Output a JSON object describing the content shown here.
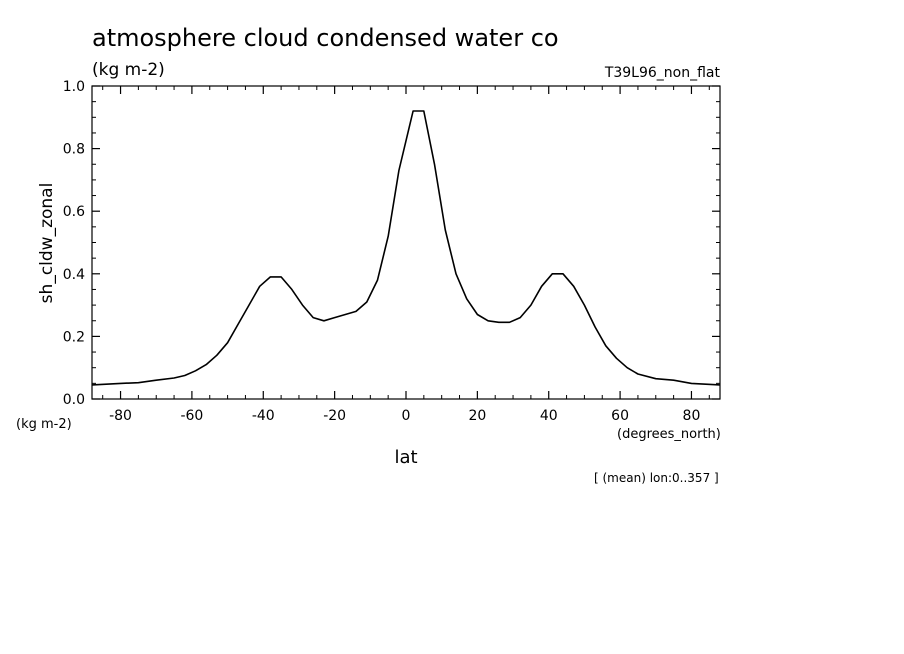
{
  "chart_data": {
    "type": "line",
    "title": "atmosphere cloud condensed water co",
    "units": "(kg m-2)",
    "run_label": "T39L96_non_flat",
    "xlabel": "lat",
    "ylabel": "sh_cldw_zonal",
    "x_units": "(degrees_north)",
    "y_units": "(kg m-2)",
    "footnote": "[ (mean) lon:0..357 ]",
    "xlim": [
      -88,
      88
    ],
    "ylim": [
      0.0,
      1.0
    ],
    "x_ticks": [
      -80,
      -60,
      -40,
      -20,
      0,
      20,
      40,
      60,
      80
    ],
    "y_ticks": [
      0.0,
      0.2,
      0.4,
      0.6,
      0.8,
      1.0
    ],
    "x_tick_labels": [
      "-80",
      "-60",
      "-40",
      "-20",
      "0",
      "20",
      "40",
      "60",
      "80"
    ],
    "y_tick_labels": [
      "0.0",
      "0.2",
      "0.4",
      "0.6",
      "0.8",
      "1.0"
    ],
    "x_minor_step": 5,
    "y_minor_step": 0.05,
    "grid": false,
    "series": [
      {
        "x": [
          -88,
          -80,
          -75,
          -70,
          -65,
          -62,
          -59,
          -56,
          -53,
          -50,
          -47,
          -44,
          -41,
          -38,
          -35,
          -32,
          -29,
          -26,
          -23,
          -20,
          -17,
          -14,
          -11,
          -8,
          -5,
          -2,
          2,
          5,
          8,
          11,
          14,
          17,
          20,
          23,
          26,
          29,
          32,
          35,
          38,
          41,
          44,
          47,
          50,
          53,
          56,
          59,
          62,
          65,
          70,
          75,
          80,
          88
        ],
        "y": [
          0.045,
          0.05,
          0.052,
          0.06,
          0.067,
          0.075,
          0.09,
          0.11,
          0.14,
          0.18,
          0.24,
          0.3,
          0.36,
          0.39,
          0.39,
          0.35,
          0.3,
          0.26,
          0.25,
          0.26,
          0.27,
          0.28,
          0.31,
          0.38,
          0.52,
          0.73,
          0.92,
          0.92,
          0.75,
          0.54,
          0.4,
          0.32,
          0.27,
          0.25,
          0.245,
          0.245,
          0.26,
          0.3,
          0.36,
          0.4,
          0.4,
          0.36,
          0.3,
          0.23,
          0.17,
          0.13,
          0.1,
          0.08,
          0.065,
          0.06,
          0.05,
          0.045
        ]
      }
    ]
  }
}
